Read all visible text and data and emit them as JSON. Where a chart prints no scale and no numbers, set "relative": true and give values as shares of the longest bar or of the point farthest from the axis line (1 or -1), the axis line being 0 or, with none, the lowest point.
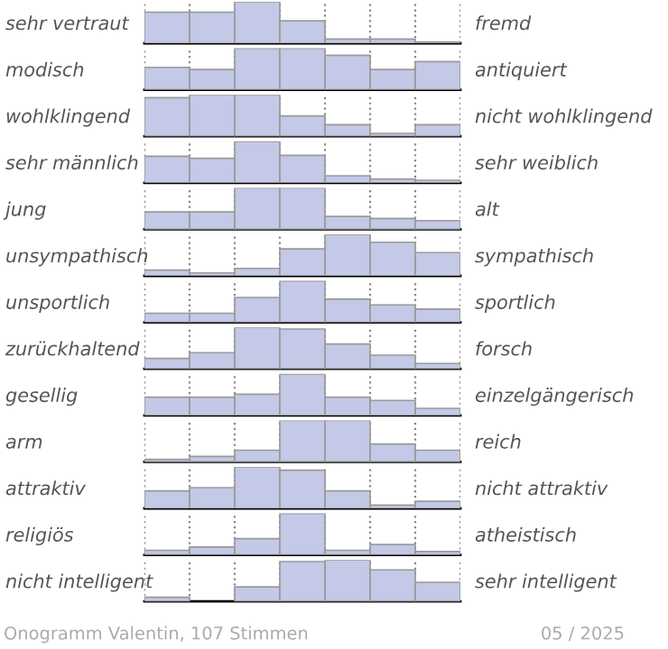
{
  "chart_data": [
    {
      "type": "bar",
      "relative": true,
      "grid": "x",
      "ylabel": "sehr vertraut",
      "y2label": "fremd",
      "categories": [
        null,
        null,
        null,
        null,
        null,
        null,
        null
      ],
      "color": "#c3c9e6",
      "values": [
        0.75,
        0.75,
        1,
        0.54,
        0.1,
        0.1,
        0.03
      ]
    },
    {
      "type": "bar",
      "relative": true,
      "grid": "x",
      "ylabel": "modisch",
      "y2label": "antiquiert",
      "categories": [
        null,
        null,
        null,
        null,
        null,
        null,
        null
      ],
      "color": "#c3c9e6",
      "values": [
        0.54,
        0.49,
        1,
        1,
        0.83,
        0.49,
        0.68
      ]
    },
    {
      "type": "bar",
      "relative": true,
      "grid": "x",
      "ylabel": "wohlklingend",
      "y2label": "nicht wohlklingend",
      "categories": [
        null,
        null,
        null,
        null,
        null,
        null,
        null
      ],
      "color": "#c3c9e6",
      "values": [
        0.93,
        1,
        1,
        0.49,
        0.28,
        0.07,
        0.28
      ]
    },
    {
      "type": "bar",
      "relative": true,
      "grid": "x",
      "ylabel": "sehr männlich",
      "y2label": "sehr weiblich",
      "categories": [
        null,
        null,
        null,
        null,
        null,
        null,
        null
      ],
      "color": "#c3c9e6",
      "values": [
        0.64,
        0.59,
        1,
        0.66,
        0.17,
        0.09,
        0.06
      ]
    },
    {
      "type": "bar",
      "relative": true,
      "grid": "x",
      "ylabel": "jung",
      "y2label": "alt",
      "categories": [
        null,
        null,
        null,
        null,
        null,
        null,
        null
      ],
      "color": "#c3c9e6",
      "values": [
        0.42,
        0.42,
        1,
        1,
        0.31,
        0.26,
        0.21
      ]
    },
    {
      "type": "bar",
      "relative": true,
      "grid": "x",
      "ylabel": "unsympathisch",
      "y2label": "sympathisch",
      "categories": [
        null,
        null,
        null,
        null,
        null,
        null,
        null
      ],
      "color": "#c3c9e6",
      "values": [
        0.14,
        0.07,
        0.18,
        0.65,
        1,
        0.81,
        0.56
      ]
    },
    {
      "type": "bar",
      "relative": true,
      "grid": "x",
      "ylabel": "unsportlich",
      "y2label": "sportlich",
      "categories": [
        null,
        null,
        null,
        null,
        null,
        null,
        null
      ],
      "color": "#c3c9e6",
      "values": [
        0.22,
        0.22,
        0.6,
        1,
        0.56,
        0.42,
        0.32
      ]
    },
    {
      "type": "bar",
      "relative": true,
      "grid": "x",
      "ylabel": "zurückhaltend",
      "y2label": "forsch",
      "categories": [
        null,
        null,
        null,
        null,
        null,
        null,
        null
      ],
      "color": "#c3c9e6",
      "values": [
        0.25,
        0.39,
        1,
        0.96,
        0.6,
        0.33,
        0.13
      ]
    },
    {
      "type": "bar",
      "relative": true,
      "grid": "x",
      "ylabel": "gesellig",
      "y2label": "einzelgängerisch",
      "categories": [
        null,
        null,
        null,
        null,
        null,
        null,
        null
      ],
      "color": "#c3c9e6",
      "values": [
        0.44,
        0.44,
        0.51,
        1,
        0.44,
        0.36,
        0.17
      ]
    },
    {
      "type": "bar",
      "relative": true,
      "grid": "x",
      "ylabel": "arm",
      "y2label": "reich",
      "categories": [
        null,
        null,
        null,
        null,
        null,
        null,
        null
      ],
      "color": "#c3c9e6",
      "values": [
        0.06,
        0.13,
        0.28,
        1,
        1,
        0.43,
        0.28
      ]
    },
    {
      "type": "bar",
      "relative": true,
      "grid": "x",
      "ylabel": "attraktiv",
      "y2label": "nicht attraktiv",
      "categories": [
        null,
        null,
        null,
        null,
        null,
        null,
        null
      ],
      "color": "#c3c9e6",
      "values": [
        0.42,
        0.5,
        1,
        0.92,
        0.42,
        0.08,
        0.17
      ]
    },
    {
      "type": "bar",
      "relative": true,
      "grid": "x",
      "ylabel": "religiös",
      "y2label": "atheistisch",
      "categories": [
        null,
        null,
        null,
        null,
        null,
        null,
        null
      ],
      "color": "#c3c9e6",
      "values": [
        0.11,
        0.19,
        0.39,
        1,
        0.11,
        0.25,
        0.08
      ]
    },
    {
      "type": "bar",
      "relative": true,
      "grid": "x",
      "ylabel": "nicht intelligent",
      "y2label": "sehr intelligent",
      "categories": [
        null,
        null,
        null,
        null,
        null,
        null,
        null
      ],
      "color": "#c3c9e6",
      "values": [
        0.1,
        0,
        0.35,
        0.96,
        1,
        0.76,
        0.46
      ],
      "annotations": [
        "Onogramm Valentin, 107 Stimmen",
        "05 / 2025"
      ]
    }
  ]
}
